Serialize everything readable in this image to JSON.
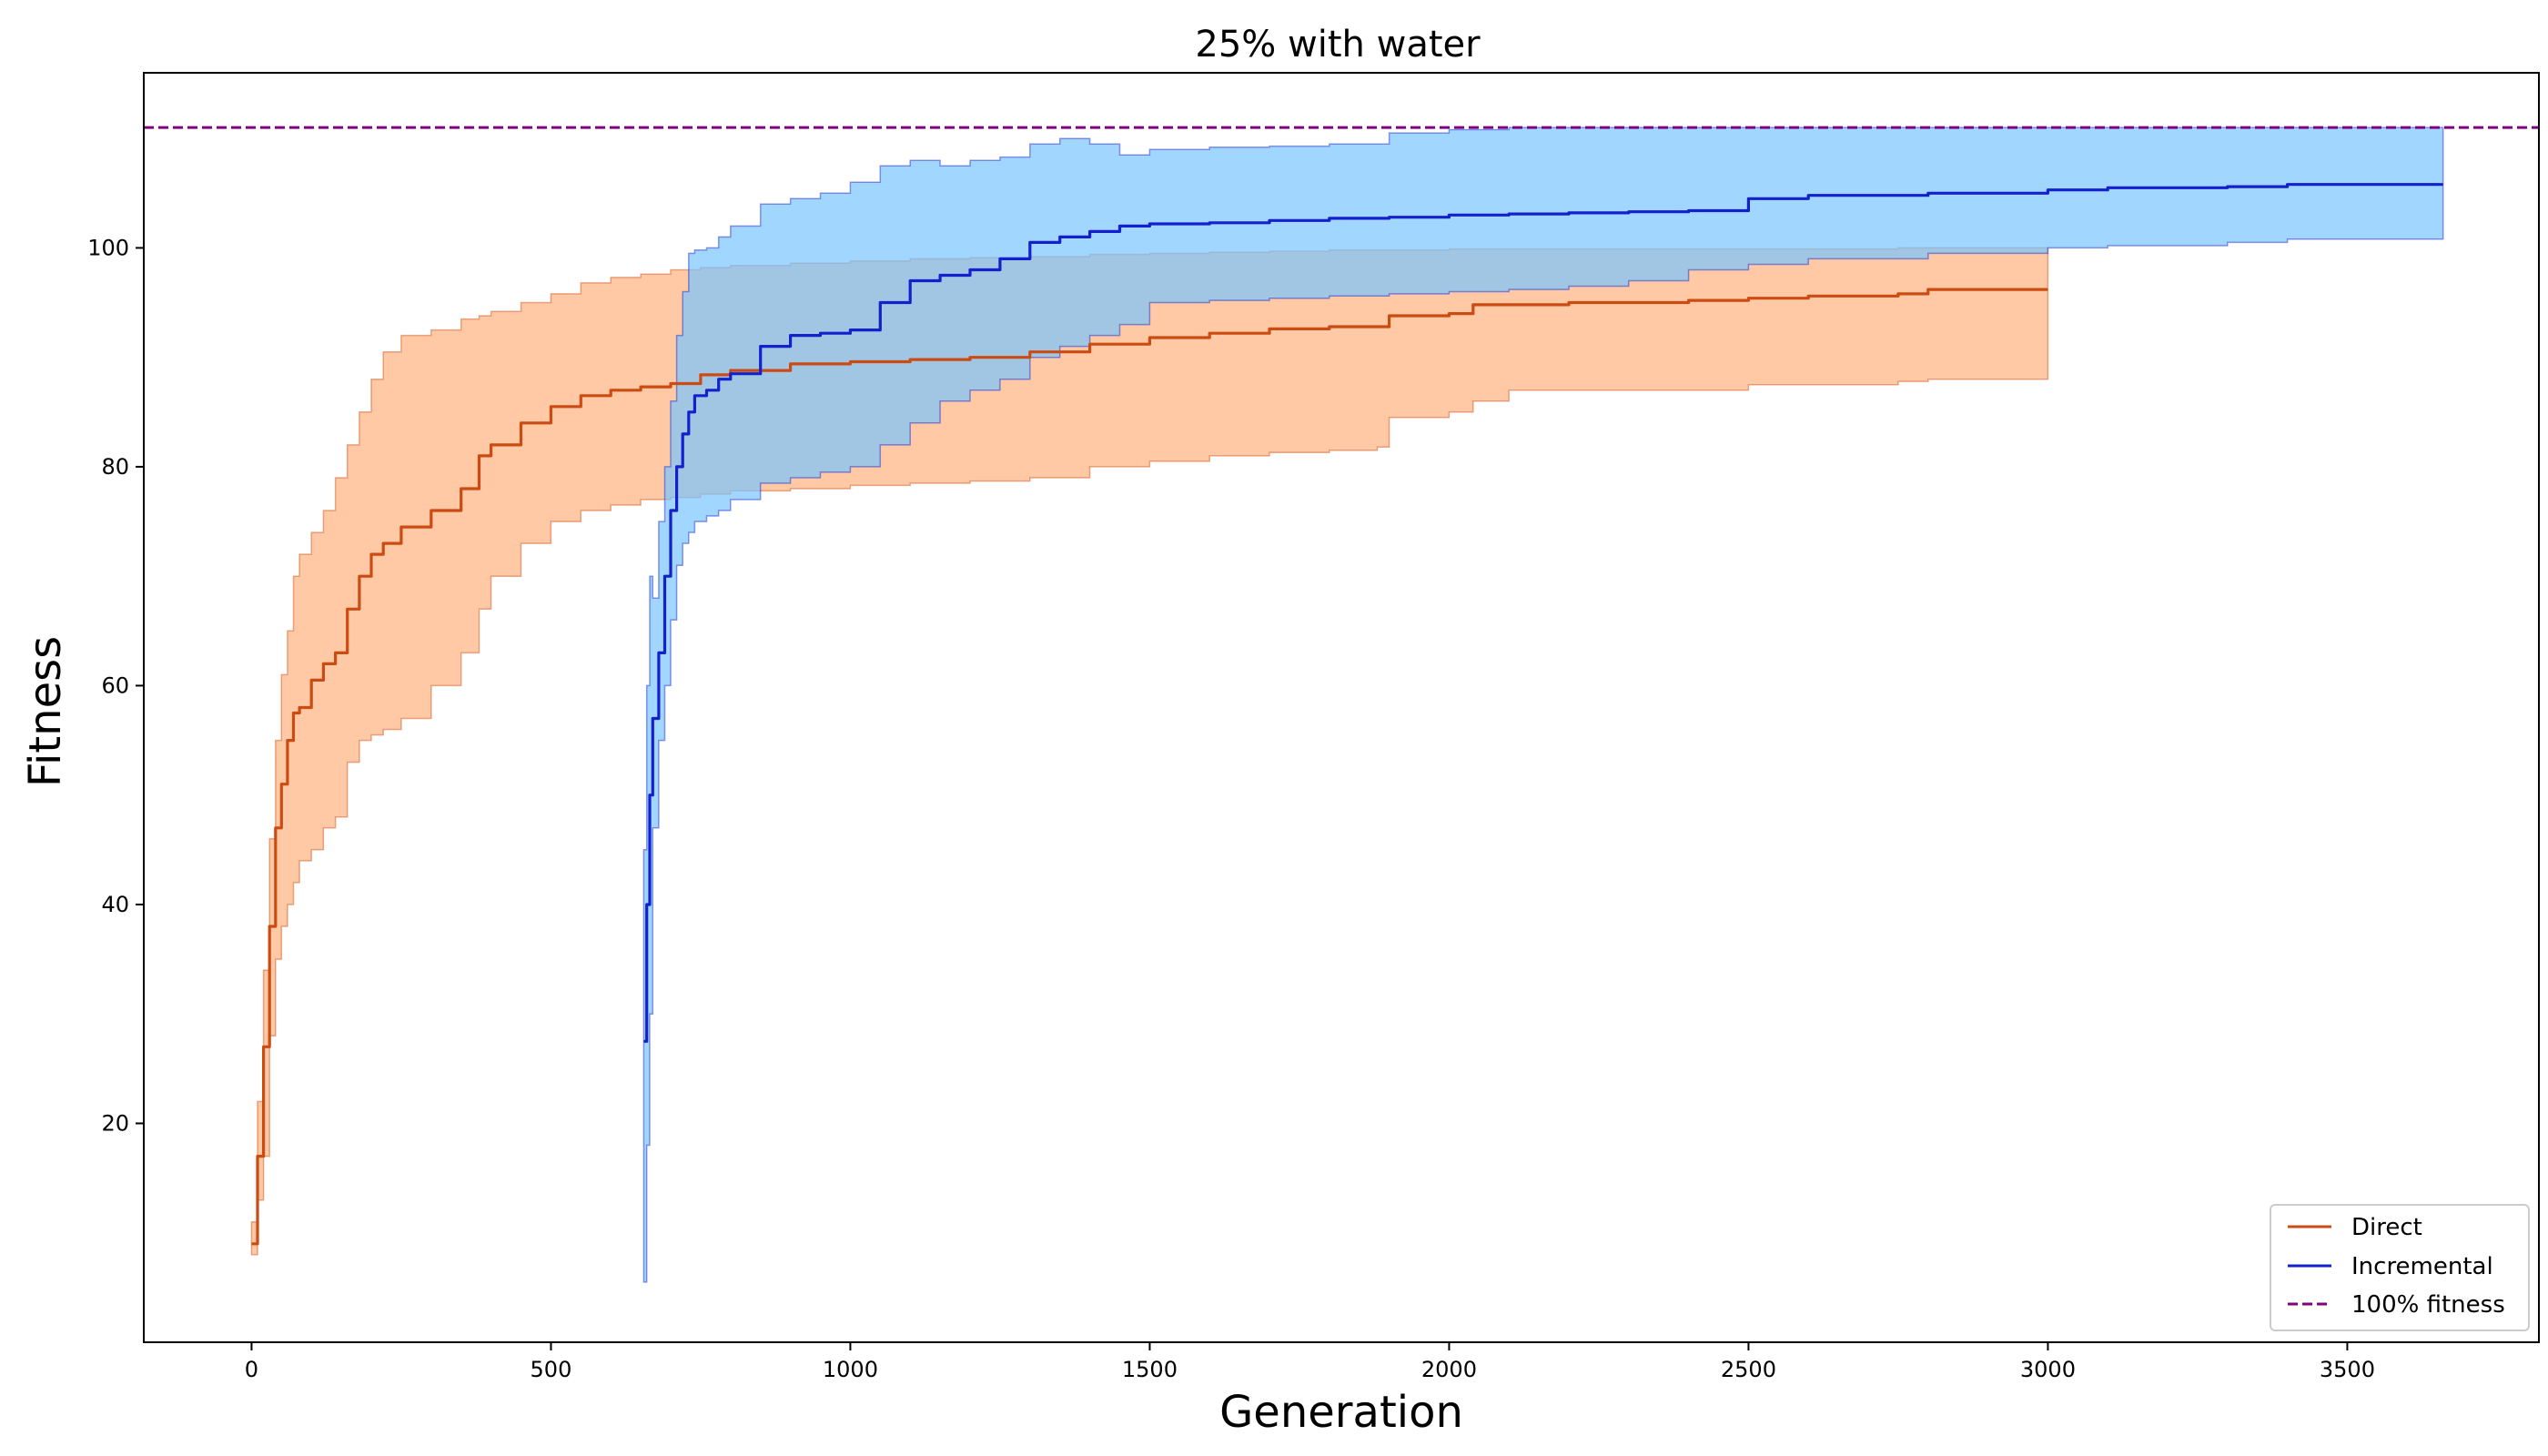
{
  "chart_data": {
    "type": "line",
    "title": "25% with water",
    "xlabel": "Generation",
    "ylabel": "Fitness",
    "xlim": [
      -180,
      3820
    ],
    "ylim": [
      0,
      116
    ],
    "xticks": [
      0,
      500,
      1000,
      1500,
      2000,
      2500,
      3000,
      3500
    ],
    "yticks": [
      20,
      40,
      60,
      80,
      100
    ],
    "grid": false,
    "legend_position": "bottom-right",
    "reference_line": {
      "name": "100% fitness",
      "y": 111,
      "style": "dashed",
      "color": "#800080"
    },
    "series": [
      {
        "name": "Direct",
        "color": "#cc4b12",
        "band_color": "#fdb27d",
        "x": [
          0,
          10,
          20,
          30,
          40,
          50,
          60,
          70,
          80,
          100,
          120,
          140,
          160,
          180,
          200,
          220,
          250,
          300,
          350,
          380,
          400,
          450,
          500,
          550,
          600,
          650,
          700,
          750,
          800,
          900,
          1000,
          1100,
          1200,
          1300,
          1400,
          1500,
          1600,
          1700,
          1800,
          1880,
          1900,
          2000,
          2040,
          2100,
          2200,
          2400,
          2500,
          2600,
          2750,
          2800,
          2900,
          3000
        ],
        "mean": [
          9,
          17,
          27,
          38,
          47,
          51,
          55,
          57.5,
          58,
          60.5,
          62,
          63,
          67,
          70,
          72,
          73,
          74.5,
          76,
          78,
          81,
          82,
          84,
          85.5,
          86.5,
          87,
          87.3,
          87.6,
          88.4,
          88.8,
          89.4,
          89.6,
          89.8,
          90.0,
          90.5,
          91.2,
          91.8,
          92.2,
          92.6,
          92.8,
          92.8,
          93.8,
          94.0,
          94.8,
          94.8,
          95.0,
          95.2,
          95.4,
          95.6,
          95.8,
          96.2,
          96.2,
          96.2
        ],
        "upper": [
          11,
          22,
          34,
          46,
          55,
          61,
          65,
          70,
          72,
          74,
          76,
          79,
          82,
          85,
          88,
          90.5,
          92,
          92.5,
          93.5,
          93.8,
          94.2,
          95,
          95.8,
          96.8,
          97.3,
          97.6,
          98.0,
          98.2,
          98.4,
          98.6,
          98.8,
          99.0,
          99.1,
          99.2,
          99.4,
          99.5,
          99.6,
          99.7,
          99.8,
          99.8,
          99.8,
          99.9,
          99.9,
          99.9,
          99.9,
          99.9,
          99.9,
          99.9,
          100.0,
          100.0,
          100.0,
          100.0
        ],
        "lower": [
          8,
          13,
          17,
          28,
          35,
          38,
          40,
          42,
          44,
          45,
          47,
          48,
          53,
          55,
          55.5,
          56,
          57,
          60,
          63,
          67,
          70,
          73,
          75,
          76,
          76.5,
          77,
          77.2,
          77.5,
          77.8,
          78.0,
          78.3,
          78.5,
          78.7,
          79.0,
          80.0,
          80.5,
          81.0,
          81.3,
          81.5,
          81.8,
          84.5,
          85.0,
          86.0,
          87.0,
          87.0,
          87.0,
          87.5,
          87.5,
          87.8,
          88.0,
          88.0,
          88.0
        ]
      },
      {
        "name": "Incremental",
        "color": "#1420cc",
        "band_color": "#78c4ff",
        "x": [
          655,
          660,
          665,
          670,
          680,
          690,
          700,
          710,
          720,
          730,
          740,
          760,
          780,
          800,
          850,
          900,
          950,
          1000,
          1050,
          1100,
          1150,
          1200,
          1250,
          1300,
          1350,
          1400,
          1450,
          1500,
          1600,
          1700,
          1800,
          1900,
          2000,
          2100,
          2200,
          2300,
          2400,
          2500,
          2600,
          2800,
          3000,
          3100,
          3300,
          3400,
          3660
        ],
        "mean": [
          27.5,
          40,
          50,
          57,
          63,
          70,
          76,
          80,
          83,
          85,
          86.5,
          87,
          88,
          88.5,
          91,
          92,
          92.2,
          92.5,
          95,
          97,
          97.5,
          98,
          99,
          100.5,
          101,
          101.5,
          102,
          102.2,
          102.3,
          102.5,
          102.7,
          102.8,
          103,
          103.1,
          103.2,
          103.3,
          103.4,
          104.5,
          104.8,
          105,
          105.3,
          105.5,
          105.6,
          105.8,
          105.8
        ],
        "upper": [
          45,
          60,
          70,
          68,
          75,
          80,
          86,
          92,
          96,
          99.5,
          99.8,
          100,
          101,
          102,
          104,
          104.5,
          105,
          106,
          107.5,
          108,
          107.5,
          108,
          108.3,
          109.5,
          110,
          109.5,
          108.5,
          109,
          109.2,
          109.3,
          109.5,
          110.5,
          110.8,
          111,
          111,
          111,
          111,
          111,
          111,
          111,
          111,
          111,
          111,
          111,
          111
        ],
        "lower": [
          5.5,
          18,
          30,
          47,
          55,
          60,
          66,
          71,
          73,
          74,
          75,
          75.5,
          76,
          77,
          78.5,
          79,
          79.5,
          80,
          82,
          84,
          86,
          87,
          88,
          90,
          91,
          92,
          93,
          95,
          95.2,
          95.4,
          95.6,
          95.8,
          96,
          96.2,
          96.5,
          97,
          98,
          98.5,
          99,
          99.5,
          100,
          100.2,
          100.5,
          100.8,
          100.8
        ]
      }
    ]
  }
}
